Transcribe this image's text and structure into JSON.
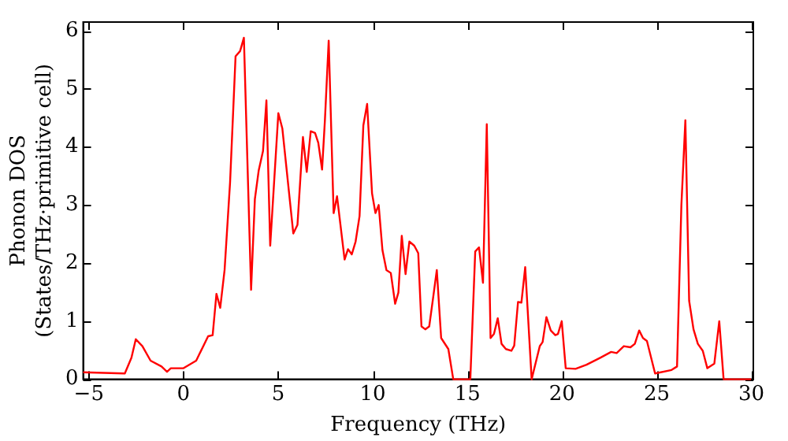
{
  "chart_data": {
    "type": "line",
    "xlabel": "Frequency (THz)",
    "ylabel": "Phonon DOS\n(States/THz·primitive cell)",
    "xlim": [
      -5.3,
      30.1
    ],
    "ylim": [
      0,
      6.15
    ],
    "xticks": [
      -5,
      0,
      5,
      10,
      15,
      20,
      25,
      30
    ],
    "yticks": [
      0,
      1,
      2,
      3,
      4,
      5,
      6
    ],
    "grid": false,
    "legend": false,
    "marker": "none",
    "line_style": "solid",
    "series": [
      {
        "color": "#ff0000",
        "x": [
          -5.3,
          -3.1,
          -2.75,
          -2.52,
          -2.17,
          -1.74,
          -1.16,
          -0.87,
          -0.67,
          0,
          0.67,
          1.3,
          1.54,
          1.74,
          1.94,
          2.17,
          2.46,
          2.75,
          2.99,
          3.19,
          3.57,
          3.77,
          3.97,
          4.2,
          4.38,
          4.58,
          5.01,
          5.22,
          5.8,
          6.02,
          6.31,
          6.51,
          6.72,
          6.95,
          7.12,
          7.32,
          7.47,
          7.67,
          7.93,
          8.11,
          8.51,
          8.69,
          8.89,
          9.09,
          9.3,
          9.5,
          9.7,
          9.96,
          10.14,
          10.31,
          10.51,
          10.72,
          10.95,
          11.18,
          11.35,
          11.53,
          11.73,
          11.93,
          12.19,
          12.4,
          12.57,
          12.77,
          12.98,
          13.18,
          13.38,
          13.61,
          13.99,
          14.25,
          15.15,
          15.41,
          15.61,
          15.82,
          16.02,
          16.22,
          16.4,
          16.6,
          16.8,
          17.03,
          17.32,
          17.47,
          17.67,
          17.85,
          18.05,
          18.39,
          18.82,
          18.97,
          19.17,
          19.4,
          19.64,
          19.78,
          19.98,
          20.19,
          20.71,
          21.29,
          22.01,
          22.59,
          22.88,
          23.26,
          23.61,
          23.84,
          24.07,
          24.27,
          24.48,
          24.91,
          25.78,
          26.07,
          26.3,
          26.51,
          26.71,
          26.94,
          27.17,
          27.43,
          27.67,
          28.04,
          28.3,
          28.53,
          29.98
        ],
        "values": [
          0.12,
          0.1,
          0.37,
          0.69,
          0.57,
          0.32,
          0.22,
          0.13,
          0.19,
          0.19,
          0.32,
          0.74,
          0.76,
          1.47,
          1.23,
          1.88,
          3.39,
          5.56,
          5.65,
          5.88,
          1.54,
          3.1,
          3.59,
          3.93,
          4.8,
          2.3,
          4.58,
          4.32,
          2.51,
          2.66,
          4.17,
          3.57,
          4.27,
          4.24,
          4.07,
          3.61,
          4.46,
          5.83,
          2.86,
          3.15,
          2.06,
          2.24,
          2.15,
          2.37,
          2.81,
          4.37,
          4.74,
          3.2,
          2.86,
          3.0,
          2.22,
          1.88,
          1.83,
          1.3,
          1.49,
          2.47,
          1.81,
          2.37,
          2.3,
          2.17,
          0.91,
          0.86,
          0.91,
          1.39,
          1.88,
          0.71,
          0.52,
          0,
          0,
          2.2,
          2.27,
          1.66,
          4.39,
          0.71,
          0.78,
          1.05,
          0.61,
          0.52,
          0.49,
          0.58,
          1.33,
          1.32,
          1.93,
          0,
          0.57,
          0.64,
          1.07,
          0.84,
          0.76,
          0.78,
          1.0,
          0.19,
          0.18,
          0.25,
          0.37,
          0.47,
          0.45,
          0.57,
          0.55,
          0.61,
          0.84,
          0.71,
          0.66,
          0.1,
          0.16,
          0.22,
          3.0,
          4.46,
          1.35,
          0.86,
          0.61,
          0.49,
          0.19,
          0.27,
          1.0,
          0,
          0
        ]
      }
    ]
  }
}
